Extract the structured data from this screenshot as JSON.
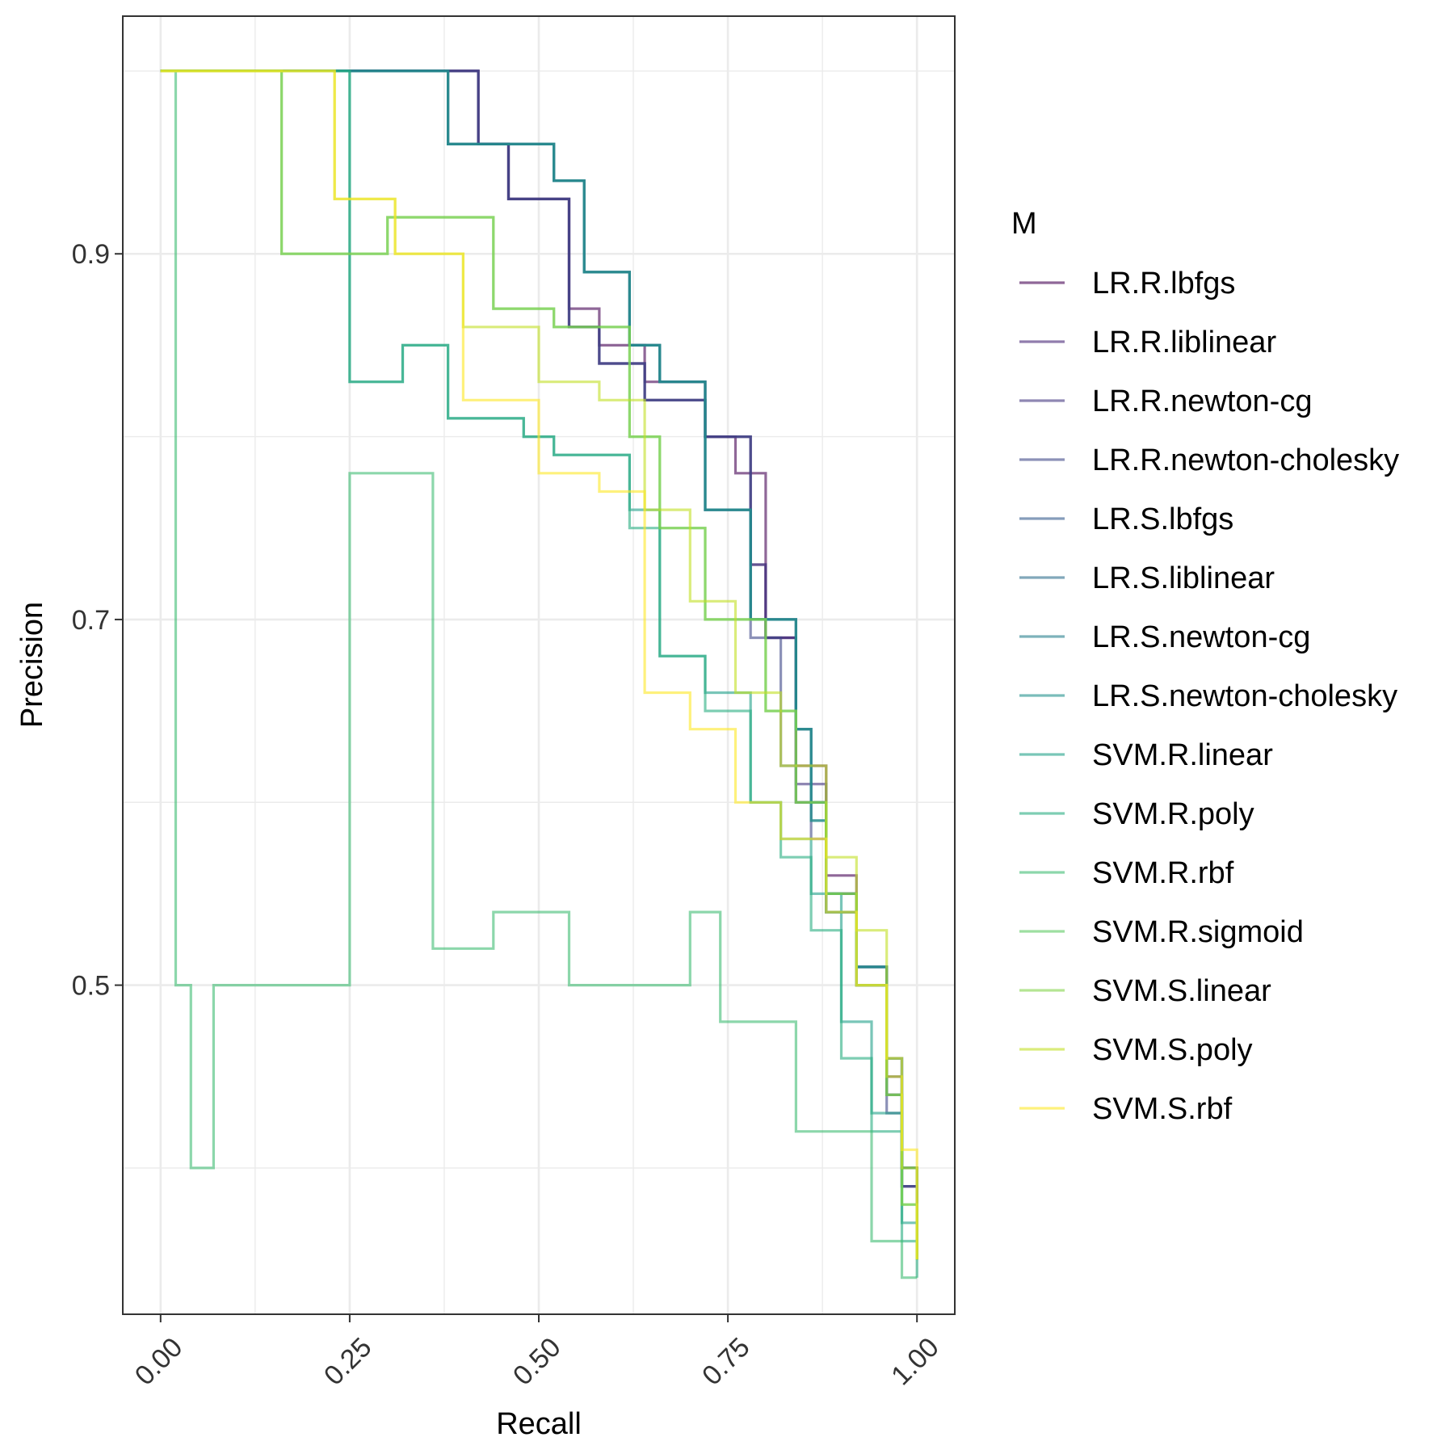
{
  "chart_data": {
    "type": "line",
    "step": true,
    "xlabel": "Recall",
    "ylabel": "Precision",
    "xlim": [
      -0.05,
      1.05
    ],
    "ylim": [
      0.32,
      1.03
    ],
    "x_ticks": [
      "0.00",
      "0.25",
      "0.50",
      "0.75",
      "1.00"
    ],
    "x_tick_values": [
      0.0,
      0.25,
      0.5,
      0.75,
      1.0
    ],
    "y_ticks": [
      "0.5",
      "0.7",
      "0.9"
    ],
    "y_tick_values": [
      0.5,
      0.7,
      0.9
    ],
    "grid": true,
    "legend_title": "M",
    "legend_position": "right",
    "series": [
      {
        "name": "LR.R.lbfgs",
        "color": "#440154",
        "x": [
          0,
          0.42,
          0.42,
          0.46,
          0.46,
          0.54,
          0.54,
          0.58,
          0.58,
          0.64,
          0.64,
          0.72,
          0.72,
          0.76,
          0.76,
          0.8,
          0.8,
          0.84,
          0.84,
          0.88,
          0.88,
          0.92,
          0.92,
          0.96,
          0.96,
          0.98,
          0.98,
          1.0,
          1.0
        ],
        "y": [
          1.0,
          1.0,
          0.96,
          0.96,
          0.93,
          0.93,
          0.87,
          0.87,
          0.85,
          0.85,
          0.83,
          0.83,
          0.8,
          0.8,
          0.78,
          0.78,
          0.69,
          0.69,
          0.62,
          0.62,
          0.56,
          0.56,
          0.51,
          0.51,
          0.45,
          0.45,
          0.4,
          0.4,
          0.36
        ]
      },
      {
        "name": "LR.R.liblinear",
        "color": "#482677",
        "x": [
          0,
          0.42,
          0.42,
          0.46,
          0.46,
          0.54,
          0.54,
          0.58,
          0.58,
          0.64,
          0.64,
          0.72,
          0.72,
          0.78,
          0.78,
          0.8,
          0.8,
          0.84,
          0.84,
          0.88,
          0.88,
          0.92,
          0.92,
          0.96,
          0.96,
          0.98,
          0.98,
          1.0,
          1.0
        ],
        "y": [
          1.0,
          1.0,
          0.96,
          0.96,
          0.93,
          0.93,
          0.86,
          0.86,
          0.84,
          0.84,
          0.82,
          0.82,
          0.8,
          0.8,
          0.73,
          0.73,
          0.69,
          0.69,
          0.6,
          0.6,
          0.55,
          0.55,
          0.5,
          0.5,
          0.44,
          0.44,
          0.39,
          0.39,
          0.35
        ]
      },
      {
        "name": "LR.R.newton-cg",
        "color": "#453781",
        "x": [
          0,
          0.42,
          0.42,
          0.46,
          0.46,
          0.54,
          0.54,
          0.58,
          0.58,
          0.64,
          0.64,
          0.72,
          0.72,
          0.78,
          0.78,
          0.8,
          0.8,
          0.84,
          0.84,
          0.88,
          0.88,
          0.92,
          0.92,
          0.96,
          0.96,
          0.98,
          0.98,
          1.0,
          1.0
        ],
        "y": [
          1.0,
          1.0,
          0.96,
          0.96,
          0.93,
          0.93,
          0.86,
          0.86,
          0.84,
          0.84,
          0.82,
          0.82,
          0.8,
          0.8,
          0.73,
          0.73,
          0.69,
          0.69,
          0.61,
          0.61,
          0.55,
          0.55,
          0.5,
          0.5,
          0.44,
          0.44,
          0.39,
          0.39,
          0.35
        ]
      },
      {
        "name": "LR.R.newton-cholesky",
        "color": "#3f4889",
        "x": [
          0,
          0.42,
          0.42,
          0.46,
          0.46,
          0.54,
          0.54,
          0.58,
          0.58,
          0.64,
          0.64,
          0.72,
          0.72,
          0.78,
          0.78,
          0.82,
          0.82,
          0.84,
          0.84,
          0.86,
          0.86,
          0.88,
          0.88,
          0.92,
          0.92,
          0.96,
          0.96,
          0.98,
          0.98,
          1.0,
          1.0
        ],
        "y": [
          1.0,
          1.0,
          0.96,
          0.96,
          0.93,
          0.93,
          0.86,
          0.86,
          0.84,
          0.84,
          0.82,
          0.82,
          0.8,
          0.8,
          0.69,
          0.69,
          0.62,
          0.62,
          0.6,
          0.6,
          0.58,
          0.58,
          0.55,
          0.55,
          0.5,
          0.5,
          0.43,
          0.43,
          0.39,
          0.39,
          0.35
        ]
      },
      {
        "name": "LR.S.lbfgs",
        "color": "#365c8d",
        "x": [
          0,
          0.38,
          0.38,
          0.52,
          0.52,
          0.56,
          0.56,
          0.62,
          0.62,
          0.66,
          0.66,
          0.72,
          0.72,
          0.78,
          0.78,
          0.84,
          0.84,
          0.86,
          0.86,
          0.88,
          0.88,
          0.92,
          0.92,
          0.96,
          0.96,
          0.98,
          0.98,
          1.0,
          1.0
        ],
        "y": [
          1.0,
          1.0,
          0.96,
          0.96,
          0.94,
          0.94,
          0.89,
          0.89,
          0.85,
          0.85,
          0.83,
          0.83,
          0.76,
          0.76,
          0.7,
          0.7,
          0.64,
          0.64,
          0.6,
          0.6,
          0.54,
          0.54,
          0.51,
          0.51,
          0.46,
          0.46,
          0.4,
          0.4,
          0.36
        ]
      },
      {
        "name": "LR.S.liblinear",
        "color": "#2e6e8e",
        "x": [
          0,
          0.38,
          0.38,
          0.52,
          0.52,
          0.56,
          0.56,
          0.62,
          0.62,
          0.66,
          0.66,
          0.72,
          0.72,
          0.78,
          0.78,
          0.84,
          0.84,
          0.86,
          0.86,
          0.88,
          0.88,
          0.92,
          0.92,
          0.96,
          0.96,
          0.98,
          0.98,
          1.0,
          1.0
        ],
        "y": [
          1.0,
          1.0,
          0.96,
          0.96,
          0.94,
          0.94,
          0.89,
          0.89,
          0.85,
          0.85,
          0.83,
          0.83,
          0.76,
          0.76,
          0.7,
          0.7,
          0.64,
          0.64,
          0.6,
          0.6,
          0.54,
          0.54,
          0.51,
          0.51,
          0.46,
          0.46,
          0.4,
          0.4,
          0.37
        ]
      },
      {
        "name": "LR.S.newton-cg",
        "color": "#277f8e",
        "x": [
          0,
          0.38,
          0.38,
          0.52,
          0.52,
          0.56,
          0.56,
          0.62,
          0.62,
          0.66,
          0.66,
          0.72,
          0.72,
          0.78,
          0.78,
          0.84,
          0.84,
          0.86,
          0.86,
          0.88,
          0.88,
          0.92,
          0.92,
          0.96,
          0.96,
          0.98,
          0.98,
          1.0,
          1.0
        ],
        "y": [
          1.0,
          1.0,
          0.96,
          0.96,
          0.94,
          0.94,
          0.89,
          0.89,
          0.85,
          0.85,
          0.83,
          0.83,
          0.76,
          0.76,
          0.7,
          0.7,
          0.64,
          0.64,
          0.59,
          0.59,
          0.54,
          0.54,
          0.51,
          0.51,
          0.46,
          0.46,
          0.4,
          0.4,
          0.36
        ]
      },
      {
        "name": "LR.S.newton-cholesky",
        "color": "#21918c",
        "x": [
          0,
          0.38,
          0.38,
          0.52,
          0.52,
          0.56,
          0.56,
          0.62,
          0.62,
          0.66,
          0.66,
          0.72,
          0.72,
          0.78,
          0.78,
          0.84,
          0.84,
          0.86,
          0.86,
          0.88,
          0.88,
          0.92,
          0.92,
          0.96,
          0.96,
          0.98,
          0.98,
          1.0,
          1.0
        ],
        "y": [
          1.0,
          1.0,
          0.96,
          0.96,
          0.94,
          0.94,
          0.89,
          0.89,
          0.85,
          0.85,
          0.83,
          0.83,
          0.76,
          0.76,
          0.7,
          0.7,
          0.64,
          0.64,
          0.59,
          0.59,
          0.54,
          0.54,
          0.51,
          0.51,
          0.46,
          0.46,
          0.4,
          0.4,
          0.37
        ]
      },
      {
        "name": "SVM.R.linear",
        "color": "#1fa088",
        "x": [
          0,
          0.25,
          0.25,
          0.32,
          0.32,
          0.38,
          0.38,
          0.48,
          0.48,
          0.52,
          0.52,
          0.62,
          0.62,
          0.66,
          0.66,
          0.72,
          0.72,
          0.78,
          0.78,
          0.82,
          0.82,
          0.86,
          0.86,
          0.9,
          0.9,
          0.94,
          0.94,
          0.98,
          0.98,
          1.0,
          1.0
        ],
        "y": [
          1.0,
          1.0,
          0.83,
          0.83,
          0.85,
          0.85,
          0.81,
          0.81,
          0.8,
          0.8,
          0.79,
          0.79,
          0.76,
          0.76,
          0.68,
          0.68,
          0.66,
          0.66,
          0.6,
          0.6,
          0.58,
          0.58,
          0.55,
          0.55,
          0.48,
          0.48,
          0.43,
          0.43,
          0.37,
          0.37,
          0.35
        ]
      },
      {
        "name": "SVM.R.poly",
        "color": "#28ae80",
        "x": [
          0,
          0.25,
          0.25,
          0.32,
          0.32,
          0.38,
          0.38,
          0.48,
          0.48,
          0.52,
          0.52,
          0.62,
          0.62,
          0.66,
          0.66,
          0.72,
          0.72,
          0.78,
          0.78,
          0.82,
          0.82,
          0.86,
          0.86,
          0.9,
          0.9,
          0.94,
          0.94,
          0.98,
          0.98,
          1.0,
          1.0
        ],
        "y": [
          1.0,
          1.0,
          0.83,
          0.83,
          0.85,
          0.85,
          0.81,
          0.81,
          0.8,
          0.8,
          0.79,
          0.79,
          0.75,
          0.75,
          0.68,
          0.68,
          0.65,
          0.65,
          0.6,
          0.6,
          0.57,
          0.57,
          0.53,
          0.53,
          0.46,
          0.46,
          0.42,
          0.42,
          0.36,
          0.36,
          0.34
        ]
      },
      {
        "name": "SVM.R.rbf",
        "color": "#3fbc73",
        "x": [
          0,
          0.02,
          0.02,
          0.04,
          0.04,
          0.07,
          0.07,
          0.25,
          0.25,
          0.32,
          0.32,
          0.36,
          0.36,
          0.44,
          0.44,
          0.54,
          0.54,
          0.7,
          0.7,
          0.74,
          0.74,
          0.84,
          0.84,
          0.94,
          0.94,
          0.98,
          0.98,
          1.0,
          1.0
        ],
        "y": [
          1.0,
          1.0,
          0.5,
          0.5,
          0.4,
          0.4,
          0.5,
          0.5,
          0.78,
          0.78,
          0.78,
          0.78,
          0.52,
          0.52,
          0.54,
          0.54,
          0.5,
          0.5,
          0.54,
          0.54,
          0.48,
          0.48,
          0.42,
          0.42,
          0.36,
          0.36,
          0.34,
          0.34,
          0.34
        ]
      },
      {
        "name": "SVM.R.sigmoid",
        "color": "#5ec962",
        "x": [
          0,
          0.16,
          0.16,
          0.3,
          0.3,
          0.44,
          0.44,
          0.52,
          0.52,
          0.62,
          0.62,
          0.66,
          0.66,
          0.72,
          0.72,
          0.8,
          0.8,
          0.84,
          0.84,
          0.88,
          0.88,
          0.92,
          0.92,
          0.96,
          0.96,
          0.98,
          0.98,
          1.0,
          1.0
        ],
        "y": [
          1.0,
          1.0,
          0.9,
          0.9,
          0.92,
          0.92,
          0.87,
          0.87,
          0.86,
          0.86,
          0.8,
          0.8,
          0.75,
          0.75,
          0.7,
          0.7,
          0.65,
          0.65,
          0.6,
          0.6,
          0.55,
          0.55,
          0.5,
          0.5,
          0.44,
          0.44,
          0.38,
          0.38,
          0.35
        ]
      },
      {
        "name": "SVM.S.linear",
        "color": "#84d44b",
        "x": [
          0,
          0.16,
          0.16,
          0.3,
          0.3,
          0.44,
          0.44,
          0.52,
          0.52,
          0.62,
          0.62,
          0.66,
          0.66,
          0.72,
          0.72,
          0.8,
          0.8,
          0.84,
          0.84,
          0.88,
          0.88,
          0.92,
          0.92,
          0.96,
          0.96,
          0.98,
          0.98,
          1.0,
          1.0
        ],
        "y": [
          1.0,
          1.0,
          0.9,
          0.9,
          0.92,
          0.92,
          0.87,
          0.87,
          0.86,
          0.86,
          0.8,
          0.8,
          0.75,
          0.75,
          0.7,
          0.7,
          0.65,
          0.65,
          0.6,
          0.6,
          0.55,
          0.55,
          0.5,
          0.5,
          0.44,
          0.44,
          0.38,
          0.38,
          0.35
        ]
      },
      {
        "name": "SVM.S.poly",
        "color": "#c2df23",
        "x": [
          0,
          0.23,
          0.23,
          0.31,
          0.31,
          0.4,
          0.4,
          0.5,
          0.5,
          0.58,
          0.58,
          0.64,
          0.64,
          0.7,
          0.7,
          0.76,
          0.76,
          0.82,
          0.82,
          0.88,
          0.88,
          0.92,
          0.92,
          0.96,
          0.96,
          0.98,
          0.98,
          1.0,
          1.0
        ],
        "y": [
          1.0,
          1.0,
          0.93,
          0.93,
          0.9,
          0.9,
          0.86,
          0.86,
          0.83,
          0.83,
          0.82,
          0.82,
          0.76,
          0.76,
          0.71,
          0.71,
          0.66,
          0.66,
          0.62,
          0.62,
          0.57,
          0.57,
          0.53,
          0.53,
          0.45,
          0.45,
          0.4,
          0.4,
          0.35
        ]
      },
      {
        "name": "SVM.S.rbf",
        "color": "#fde725",
        "x": [
          0,
          0.23,
          0.23,
          0.31,
          0.31,
          0.4,
          0.4,
          0.5,
          0.5,
          0.58,
          0.58,
          0.64,
          0.64,
          0.7,
          0.7,
          0.76,
          0.76,
          0.82,
          0.82,
          0.88,
          0.88,
          0.92,
          0.92,
          0.96,
          0.96,
          0.98,
          0.98,
          1.0,
          1.0
        ],
        "y": [
          1.0,
          1.0,
          0.93,
          0.93,
          0.9,
          0.9,
          0.82,
          0.82,
          0.78,
          0.78,
          0.77,
          0.77,
          0.66,
          0.66,
          0.64,
          0.64,
          0.6,
          0.6,
          0.58,
          0.58,
          0.54,
          0.54,
          0.5,
          0.5,
          0.46,
          0.46,
          0.41,
          0.41,
          0.35
        ]
      }
    ]
  }
}
